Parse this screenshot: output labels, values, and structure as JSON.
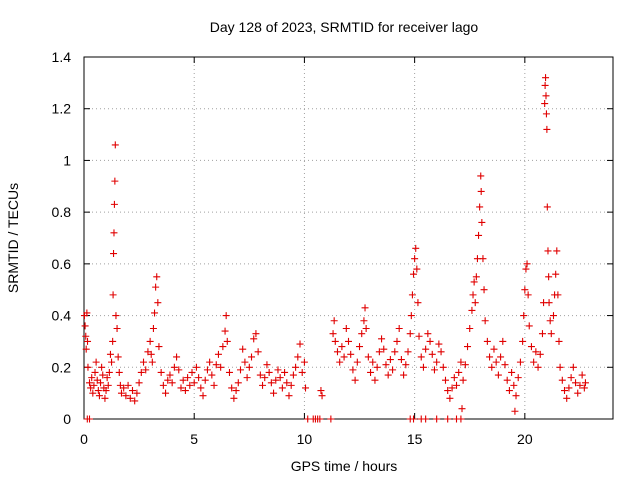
{
  "chart_data": {
    "type": "scatter",
    "title": "Day 128 of 2023, SRMTID for receiver lago",
    "xlabel": "GPS time / hours",
    "ylabel": "SRMTID / TECUs",
    "xlim": [
      0,
      24
    ],
    "ylim": [
      0,
      1.4
    ],
    "xticks": [
      0,
      5,
      10,
      15,
      20
    ],
    "xtick_labels": [
      "0",
      "5",
      "10",
      "15",
      "20"
    ],
    "yticks": [
      0,
      0.2,
      0.4,
      0.6,
      0.8,
      1.0,
      1.2,
      1.4
    ],
    "ytick_labels": [
      "0",
      "0.2",
      "0.4",
      "0.6",
      "0.8",
      "1",
      "1.2",
      "1.4"
    ],
    "grid": true,
    "marker": "plus",
    "series": [
      {
        "name": "SRMTID",
        "color": "#e00000",
        "points": [
          [
            0.02,
            0.4
          ],
          [
            0.05,
            0.36
          ],
          [
            0.08,
            0.32
          ],
          [
            0.1,
            0.27
          ],
          [
            0.13,
            0.41
          ],
          [
            0.16,
            0.3
          ],
          [
            0.18,
            0.2
          ],
          [
            0.25,
            0.14
          ],
          [
            0.3,
            0.12
          ],
          [
            0.35,
            0.16
          ],
          [
            0.4,
            0.1
          ],
          [
            0.45,
            0.13
          ],
          [
            0.5,
            0.18
          ],
          [
            0.55,
            0.22
          ],
          [
            0.6,
            0.15
          ],
          [
            0.65,
            0.11
          ],
          [
            0.7,
            0.09
          ],
          [
            0.75,
            0.14
          ],
          [
            0.8,
            0.2
          ],
          [
            0.85,
            0.17
          ],
          [
            0.9,
            0.12
          ],
          [
            0.95,
            0.08
          ],
          [
            1.0,
            0.11
          ],
          [
            1.05,
            0.16
          ],
          [
            1.1,
            0.13
          ],
          [
            1.15,
            0.18
          ],
          [
            1.2,
            0.25
          ],
          [
            1.25,
            0.22
          ],
          [
            1.3,
            0.3
          ],
          [
            1.32,
            0.48
          ],
          [
            1.34,
            0.64
          ],
          [
            1.36,
            0.72
          ],
          [
            1.38,
            0.83
          ],
          [
            1.4,
            0.92
          ],
          [
            1.42,
            1.06
          ],
          [
            1.45,
            0.4
          ],
          [
            1.5,
            0.35
          ],
          [
            1.55,
            0.24
          ],
          [
            1.6,
            0.18
          ],
          [
            1.65,
            0.13
          ],
          [
            1.7,
            0.1
          ],
          [
            1.8,
            0.12
          ],
          [
            1.9,
            0.09
          ],
          [
            2.0,
            0.13
          ],
          [
            2.1,
            0.08
          ],
          [
            2.2,
            0.11
          ],
          [
            2.3,
            0.07
          ],
          [
            2.4,
            0.1
          ],
          [
            2.5,
            0.14
          ],
          [
            2.6,
            0.18
          ],
          [
            2.7,
            0.22
          ],
          [
            2.8,
            0.19
          ],
          [
            2.9,
            0.26
          ],
          [
            3.0,
            0.3
          ],
          [
            3.05,
            0.25
          ],
          [
            3.1,
            0.22
          ],
          [
            3.15,
            0.35
          ],
          [
            3.2,
            0.41
          ],
          [
            3.25,
            0.51
          ],
          [
            3.3,
            0.55
          ],
          [
            3.35,
            0.45
          ],
          [
            3.4,
            0.28
          ],
          [
            3.5,
            0.18
          ],
          [
            3.6,
            0.13
          ],
          [
            3.7,
            0.1
          ],
          [
            3.8,
            0.15
          ],
          [
            3.9,
            0.17
          ],
          [
            4.0,
            0.14
          ],
          [
            4.1,
            0.2
          ],
          [
            4.2,
            0.24
          ],
          [
            4.3,
            0.19
          ],
          [
            4.4,
            0.12
          ],
          [
            4.5,
            0.15
          ],
          [
            4.6,
            0.11
          ],
          [
            4.7,
            0.16
          ],
          [
            4.8,
            0.13
          ],
          [
            4.9,
            0.18
          ],
          [
            5.0,
            0.14
          ],
          [
            5.1,
            0.2
          ],
          [
            5.2,
            0.16
          ],
          [
            5.3,
            0.12
          ],
          [
            5.4,
            0.09
          ],
          [
            5.5,
            0.15
          ],
          [
            5.6,
            0.19
          ],
          [
            5.7,
            0.22
          ],
          [
            5.8,
            0.17
          ],
          [
            5.9,
            0.13
          ],
          [
            6.0,
            0.21
          ],
          [
            6.1,
            0.25
          ],
          [
            6.2,
            0.2
          ],
          [
            6.3,
            0.28
          ],
          [
            6.4,
            0.34
          ],
          [
            6.45,
            0.4
          ],
          [
            6.5,
            0.3
          ],
          [
            6.6,
            0.18
          ],
          [
            6.7,
            0.12
          ],
          [
            6.8,
            0.08
          ],
          [
            6.9,
            0.11
          ],
          [
            7.0,
            0.14
          ],
          [
            7.1,
            0.19
          ],
          [
            7.2,
            0.27
          ],
          [
            7.3,
            0.22
          ],
          [
            7.4,
            0.16
          ],
          [
            7.5,
            0.2
          ],
          [
            7.6,
            0.24
          ],
          [
            7.7,
            0.31
          ],
          [
            7.8,
            0.33
          ],
          [
            7.9,
            0.26
          ],
          [
            8.0,
            0.17
          ],
          [
            8.1,
            0.13
          ],
          [
            8.2,
            0.16
          ],
          [
            8.3,
            0.21
          ],
          [
            8.4,
            0.18
          ],
          [
            8.5,
            0.14
          ],
          [
            8.6,
            0.1
          ],
          [
            8.7,
            0.15
          ],
          [
            8.8,
            0.19
          ],
          [
            8.9,
            0.16
          ],
          [
            9.0,
            0.12
          ],
          [
            9.1,
            0.18
          ],
          [
            9.2,
            0.14
          ],
          [
            9.3,
            0.09
          ],
          [
            9.4,
            0.13
          ],
          [
            9.5,
            0.17
          ],
          [
            9.6,
            0.2
          ],
          [
            9.7,
            0.24
          ],
          [
            9.8,
            0.29
          ],
          [
            9.9,
            0.18
          ],
          [
            10.0,
            0.22
          ],
          [
            10.05,
            0.12
          ],
          [
            10.75,
            0.11
          ],
          [
            10.8,
            0.09
          ],
          [
            11.3,
            0.33
          ],
          [
            11.35,
            0.38
          ],
          [
            11.4,
            0.3
          ],
          [
            11.5,
            0.26
          ],
          [
            11.6,
            0.22
          ],
          [
            11.7,
            0.28
          ],
          [
            11.8,
            0.24
          ],
          [
            11.9,
            0.35
          ],
          [
            12.0,
            0.3
          ],
          [
            12.1,
            0.25
          ],
          [
            12.2,
            0.19
          ],
          [
            12.3,
            0.15
          ],
          [
            12.4,
            0.22
          ],
          [
            12.5,
            0.28
          ],
          [
            12.6,
            0.33
          ],
          [
            12.7,
            0.38
          ],
          [
            12.75,
            0.43
          ],
          [
            12.8,
            0.35
          ],
          [
            12.9,
            0.24
          ],
          [
            13.0,
            0.18
          ],
          [
            13.1,
            0.22
          ],
          [
            13.2,
            0.15
          ],
          [
            13.3,
            0.2
          ],
          [
            13.4,
            0.26
          ],
          [
            13.5,
            0.31
          ],
          [
            13.6,
            0.27
          ],
          [
            13.7,
            0.21
          ],
          [
            13.8,
            0.17
          ],
          [
            13.9,
            0.23
          ],
          [
            14.0,
            0.19
          ],
          [
            14.1,
            0.26
          ],
          [
            14.2,
            0.3
          ],
          [
            14.3,
            0.35
          ],
          [
            14.4,
            0.23
          ],
          [
            14.5,
            0.17
          ],
          [
            14.6,
            0.21
          ],
          [
            14.7,
            0.26
          ],
          [
            14.8,
            0.33
          ],
          [
            14.85,
            0.4
          ],
          [
            14.9,
            0.48
          ],
          [
            14.95,
            0.56
          ],
          [
            15.0,
            0.62
          ],
          [
            15.05,
            0.66
          ],
          [
            15.1,
            0.58
          ],
          [
            15.15,
            0.45
          ],
          [
            15.2,
            0.32
          ],
          [
            15.3,
            0.24
          ],
          [
            15.4,
            0.2
          ],
          [
            15.5,
            0.27
          ],
          [
            15.6,
            0.33
          ],
          [
            15.7,
            0.3
          ],
          [
            15.8,
            0.25
          ],
          [
            15.9,
            0.19
          ],
          [
            16.0,
            0.22
          ],
          [
            16.1,
            0.29
          ],
          [
            16.2,
            0.26
          ],
          [
            16.3,
            0.2
          ],
          [
            16.4,
            0.15
          ],
          [
            16.5,
            0.11
          ],
          [
            16.6,
            0.08
          ],
          [
            16.7,
            0.12
          ],
          [
            16.8,
            0.16
          ],
          [
            16.9,
            0.13
          ],
          [
            17.0,
            0.18
          ],
          [
            17.1,
            0.22
          ],
          [
            17.2,
            0.15
          ],
          [
            17.15,
            0.04
          ],
          [
            17.3,
            0.21
          ],
          [
            17.4,
            0.28
          ],
          [
            17.5,
            0.35
          ],
          [
            17.6,
            0.42
          ],
          [
            17.65,
            0.48
          ],
          [
            17.7,
            0.53
          ],
          [
            17.75,
            0.45
          ],
          [
            17.8,
            0.55
          ],
          [
            17.85,
            0.62
          ],
          [
            17.9,
            0.71
          ],
          [
            17.95,
            0.82
          ],
          [
            18.0,
            0.94
          ],
          [
            18.02,
            0.88
          ],
          [
            18.05,
            0.76
          ],
          [
            18.1,
            0.62
          ],
          [
            18.15,
            0.5
          ],
          [
            18.2,
            0.38
          ],
          [
            18.3,
            0.3
          ],
          [
            18.4,
            0.24
          ],
          [
            18.5,
            0.2
          ],
          [
            18.6,
            0.27
          ],
          [
            18.7,
            0.22
          ],
          [
            18.8,
            0.17
          ],
          [
            18.9,
            0.24
          ],
          [
            19.0,
            0.3
          ],
          [
            19.1,
            0.21
          ],
          [
            19.2,
            0.15
          ],
          [
            19.3,
            0.11
          ],
          [
            19.4,
            0.18
          ],
          [
            19.5,
            0.13
          ],
          [
            19.55,
            0.03
          ],
          [
            19.6,
            0.09
          ],
          [
            19.7,
            0.16
          ],
          [
            19.8,
            0.22
          ],
          [
            19.9,
            0.3
          ],
          [
            19.95,
            0.4
          ],
          [
            20.0,
            0.5
          ],
          [
            20.05,
            0.58
          ],
          [
            20.1,
            0.6
          ],
          [
            20.15,
            0.48
          ],
          [
            20.2,
            0.36
          ],
          [
            20.3,
            0.28
          ],
          [
            20.4,
            0.22
          ],
          [
            20.5,
            0.26
          ],
          [
            20.6,
            0.2
          ],
          [
            20.7,
            0.25
          ],
          [
            20.8,
            0.33
          ],
          [
            20.85,
            0.45
          ],
          [
            20.9,
            1.22
          ],
          [
            20.92,
            1.29
          ],
          [
            20.94,
            1.32
          ],
          [
            20.96,
            1.25
          ],
          [
            20.98,
            1.18
          ],
          [
            21.0,
            1.12
          ],
          [
            21.02,
            0.82
          ],
          [
            21.05,
            0.65
          ],
          [
            21.08,
            0.55
          ],
          [
            21.1,
            0.45
          ],
          [
            21.15,
            0.38
          ],
          [
            21.2,
            0.33
          ],
          [
            21.3,
            0.4
          ],
          [
            21.35,
            0.48
          ],
          [
            21.4,
            0.56
          ],
          [
            21.45,
            0.65
          ],
          [
            21.5,
            0.48
          ],
          [
            21.55,
            0.3
          ],
          [
            21.6,
            0.2
          ],
          [
            21.7,
            0.15
          ],
          [
            21.8,
            0.11
          ],
          [
            21.9,
            0.08
          ],
          [
            22.0,
            0.12
          ],
          [
            22.1,
            0.16
          ],
          [
            22.2,
            0.2
          ],
          [
            22.3,
            0.14
          ],
          [
            22.4,
            0.1
          ],
          [
            22.5,
            0.13
          ],
          [
            22.6,
            0.17
          ],
          [
            22.7,
            0.12
          ],
          [
            22.75,
            0.14
          ]
        ],
        "zero_points": [
          0.15,
          0.25,
          10.15,
          10.4,
          10.5,
          10.6,
          10.7,
          11.2,
          14.8,
          14.95,
          15.3,
          15.5,
          16.0,
          16.5,
          16.9,
          17.1
        ]
      }
    ]
  }
}
